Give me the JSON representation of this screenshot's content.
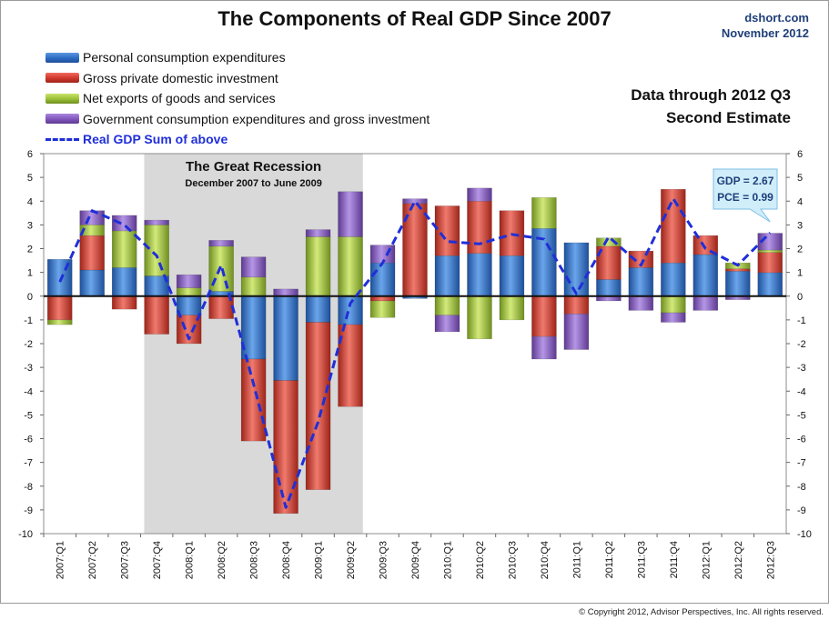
{
  "title": "The Components of Real GDP Since 2007",
  "source": "dshort.com",
  "source_date": "November 2012",
  "note_line1": "Data through 2012 Q3",
  "note_line2": "Second Estimate",
  "copyright": "© Copyright 2012, Advisor Perspectives, Inc. All rights reserved.",
  "colors": {
    "pce": "#2f6fc6",
    "investment": "#d43a2f",
    "net_exports": "#9ec33a",
    "government": "#8559c0",
    "gdp_line": "#1f2fd8"
  },
  "chart_data": {
    "type": "bar",
    "stacked": true,
    "title": "The Components of Real GDP Since 2007",
    "ylim": [
      -10,
      6
    ],
    "yticks": [
      -10,
      -9,
      -8,
      -7,
      -6,
      -5,
      -4,
      -3,
      -2,
      -1,
      0,
      1,
      2,
      3,
      4,
      5,
      6
    ],
    "grid": false,
    "legend_position": "top-left",
    "categories": [
      "2007:Q1",
      "2007:Q2",
      "2007:Q3",
      "2007:Q4",
      "2008:Q1",
      "2008:Q2",
      "2008:Q3",
      "2008:Q4",
      "2009:Q1",
      "2009:Q2",
      "2009:Q3",
      "2009:Q4",
      "2010:Q1",
      "2010:Q2",
      "2010:Q3",
      "2010:Q4",
      "2011:Q1",
      "2011:Q2",
      "2011:Q3",
      "2011:Q4",
      "2012:Q1",
      "2012:Q2",
      "2012:Q3"
    ],
    "series": [
      {
        "name": "Personal consumption expenditures",
        "key": "pce",
        "values": [
          1.55,
          1.1,
          1.2,
          0.85,
          -0.8,
          0.2,
          -2.65,
          -3.55,
          -1.1,
          -1.2,
          1.4,
          -0.1,
          1.7,
          1.8,
          1.7,
          2.85,
          2.25,
          0.7,
          1.2,
          1.4,
          1.75,
          1.05,
          0.99
        ]
      },
      {
        "name": "Gross private domestic investment",
        "key": "investment",
        "values": [
          -1.0,
          1.45,
          -0.55,
          -1.6,
          -1.2,
          -0.95,
          -3.45,
          -5.6,
          -7.05,
          -3.45,
          -0.2,
          3.9,
          2.1,
          2.2,
          1.9,
          -1.7,
          -0.75,
          1.4,
          0.7,
          3.1,
          0.8,
          0.1,
          0.85
        ]
      },
      {
        "name": "Net exports of goods and services",
        "key": "net_exports",
        "values": [
          -0.2,
          0.45,
          1.55,
          2.15,
          0.35,
          1.9,
          0.8,
          0.0,
          2.5,
          2.5,
          -0.7,
          0.0,
          -0.8,
          -1.8,
          -1.0,
          1.3,
          0.0,
          0.35,
          0.0,
          -0.7,
          0.0,
          0.25,
          0.1
        ]
      },
      {
        "name": "Government consumption expenditures and gross investment",
        "key": "government",
        "values": [
          0.0,
          0.6,
          0.65,
          0.2,
          0.55,
          0.25,
          0.85,
          0.3,
          0.3,
          1.9,
          0.75,
          0.2,
          -0.7,
          0.55,
          0.0,
          -0.95,
          -1.5,
          -0.2,
          -0.6,
          -0.4,
          -0.6,
          -0.15,
          0.71
        ]
      }
    ],
    "line": {
      "name": "Real GDP Sum of above",
      "values": [
        0.6,
        3.6,
        3.0,
        1.7,
        -1.8,
        1.3,
        -3.7,
        -8.9,
        -5.3,
        -0.3,
        1.4,
        4.0,
        2.3,
        2.2,
        2.6,
        2.4,
        0.1,
        2.5,
        1.3,
        4.1,
        2.0,
        1.3,
        2.67
      ]
    },
    "shaded_region": {
      "label": "The Great Recession",
      "sublabel": "December 2007  to June 2009",
      "from": "2007:Q4",
      "to": "2009:Q2"
    },
    "callout": {
      "line1": "GDP = 2.67",
      "line2": "PCE = 0.99",
      "category": "2012:Q3"
    }
  }
}
